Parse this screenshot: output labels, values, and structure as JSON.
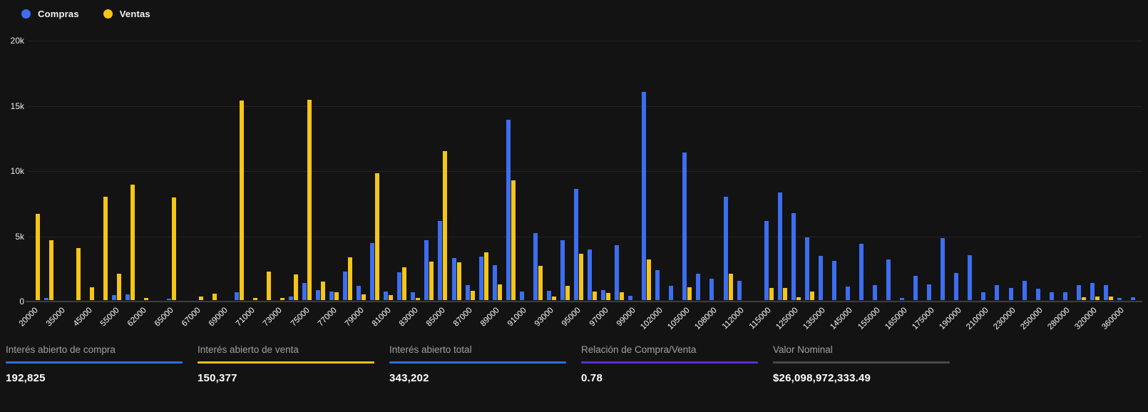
{
  "legend": [
    {
      "label": "Compras",
      "color": "#3d6ef1"
    },
    {
      "label": "Ventas",
      "color": "#f5c517"
    }
  ],
  "colors": {
    "background": "#131313",
    "compras_bar": "#3d6ef1",
    "ventas_bar": "#f5c517",
    "gridline": "#242424",
    "axis_line": "#3e3e3e"
  },
  "chart_data": {
    "type": "bar",
    "series_names": [
      "Compras",
      "Ventas"
    ],
    "xlabel": "",
    "ylabel": "",
    "ylim": [
      0,
      20000
    ],
    "y_ticks": [
      "0",
      "5k",
      "10k",
      "15k",
      "20k"
    ],
    "legend_position": "top-left",
    "grid": true,
    "note_label_interval": "only every second group is labeled on the x-axis",
    "groups": [
      {
        "label": "20000",
        "compras": 0,
        "ventas": 6600
      },
      {
        "label": "",
        "compras": 150,
        "ventas": 4600
      },
      {
        "label": "35000",
        "compras": 0,
        "ventas": 0
      },
      {
        "label": "",
        "compras": 0,
        "ventas": 4000
      },
      {
        "label": "45000",
        "compras": 0,
        "ventas": 1000
      },
      {
        "label": "",
        "compras": 0,
        "ventas": 7900
      },
      {
        "label": "55000",
        "compras": 400,
        "ventas": 2000
      },
      {
        "label": "",
        "compras": 450,
        "ventas": 8850
      },
      {
        "label": "62000",
        "compras": 0,
        "ventas": 150
      },
      {
        "label": "",
        "compras": 0,
        "ventas": 0
      },
      {
        "label": "65000",
        "compras": 100,
        "ventas": 7850
      },
      {
        "label": "",
        "compras": 0,
        "ventas": 0
      },
      {
        "label": "67000",
        "compras": 0,
        "ventas": 300
      },
      {
        "label": "",
        "compras": 0,
        "ventas": 500
      },
      {
        "label": "69000",
        "compras": 0,
        "ventas": 0
      },
      {
        "label": "",
        "compras": 600,
        "ventas": 15300
      },
      {
        "label": "71000",
        "compras": 0,
        "ventas": 150
      },
      {
        "label": "",
        "compras": 0,
        "ventas": 2200
      },
      {
        "label": "73000",
        "compras": 0,
        "ventas": 150
      },
      {
        "label": "",
        "compras": 270,
        "ventas": 1950
      },
      {
        "label": "75000",
        "compras": 1300,
        "ventas": 15350
      },
      {
        "label": "",
        "compras": 770,
        "ventas": 1400
      },
      {
        "label": "77000",
        "compras": 630,
        "ventas": 580
      },
      {
        "label": "",
        "compras": 2200,
        "ventas": 3300
      },
      {
        "label": "79000",
        "compras": 1100,
        "ventas": 450
      },
      {
        "label": "",
        "compras": 4350,
        "ventas": 9750
      },
      {
        "label": "81000",
        "compras": 630,
        "ventas": 360
      },
      {
        "label": "",
        "compras": 2150,
        "ventas": 2500
      },
      {
        "label": "83000",
        "compras": 590,
        "ventas": 150
      },
      {
        "label": "",
        "compras": 4600,
        "ventas": 2950
      },
      {
        "label": "85000",
        "compras": 6050,
        "ventas": 11400
      },
      {
        "label": "",
        "compras": 3250,
        "ventas": 2900
      },
      {
        "label": "87000",
        "compras": 1150,
        "ventas": 700
      },
      {
        "label": "",
        "compras": 3350,
        "ventas": 3650
      },
      {
        "label": "89000",
        "compras": 2700,
        "ventas": 1200
      },
      {
        "label": "",
        "compras": 13850,
        "ventas": 9200
      },
      {
        "label": "91000",
        "compras": 650,
        "ventas": 0
      },
      {
        "label": "",
        "compras": 5150,
        "ventas": 2650
      },
      {
        "label": "93000",
        "compras": 700,
        "ventas": 270
      },
      {
        "label": "",
        "compras": 4600,
        "ventas": 1100
      },
      {
        "label": "95000",
        "compras": 8550,
        "ventas": 3550
      },
      {
        "label": "",
        "compras": 3900,
        "ventas": 650
      },
      {
        "label": "97000",
        "compras": 770,
        "ventas": 550
      },
      {
        "label": "",
        "compras": 4200,
        "ventas": 600
      },
      {
        "label": "99000",
        "compras": 320,
        "ventas": 0
      },
      {
        "label": "",
        "compras": 15950,
        "ventas": 3100
      },
      {
        "label": "102000",
        "compras": 2300,
        "ventas": 0
      },
      {
        "label": "",
        "compras": 1100,
        "ventas": 0
      },
      {
        "label": "105000",
        "compras": 11300,
        "ventas": 1000
      },
      {
        "label": "",
        "compras": 2050,
        "ventas": 0
      },
      {
        "label": "108000",
        "compras": 1650,
        "ventas": 0
      },
      {
        "label": "",
        "compras": 7900,
        "ventas": 2050
      },
      {
        "label": "112000",
        "compras": 1500,
        "ventas": 0
      },
      {
        "label": "",
        "compras": 0,
        "ventas": 0
      },
      {
        "label": "115000",
        "compras": 6050,
        "ventas": 950
      },
      {
        "label": "",
        "compras": 8250,
        "ventas": 950
      },
      {
        "label": "125000",
        "compras": 6650,
        "ventas": 200
      },
      {
        "label": "",
        "compras": 4800,
        "ventas": 650
      },
      {
        "label": "135000",
        "compras": 3400,
        "ventas": 0
      },
      {
        "label": "",
        "compras": 3000,
        "ventas": 0
      },
      {
        "label": "145000",
        "compras": 1050,
        "ventas": 0
      },
      {
        "label": "",
        "compras": 4300,
        "ventas": 0
      },
      {
        "label": "155000",
        "compras": 1150,
        "ventas": 0
      },
      {
        "label": "",
        "compras": 3100,
        "ventas": 0
      },
      {
        "label": "165000",
        "compras": 150,
        "ventas": 0
      },
      {
        "label": "",
        "compras": 1850,
        "ventas": 0
      },
      {
        "label": "175000",
        "compras": 1200,
        "ventas": 0
      },
      {
        "label": "",
        "compras": 4750,
        "ventas": 0
      },
      {
        "label": "190000",
        "compras": 2100,
        "ventas": 0
      },
      {
        "label": "",
        "compras": 3450,
        "ventas": 0
      },
      {
        "label": "210000",
        "compras": 600,
        "ventas": 0
      },
      {
        "label": "",
        "compras": 1150,
        "ventas": 0
      },
      {
        "label": "230000",
        "compras": 950,
        "ventas": 0
      },
      {
        "label": "",
        "compras": 1500,
        "ventas": 0
      },
      {
        "label": "250000",
        "compras": 900,
        "ventas": 0
      },
      {
        "label": "",
        "compras": 600,
        "ventas": 0
      },
      {
        "label": "280000",
        "compras": 600,
        "ventas": 0
      },
      {
        "label": "",
        "compras": 1150,
        "ventas": 230
      },
      {
        "label": "320000",
        "compras": 1300,
        "ventas": 270
      },
      {
        "label": "",
        "compras": 1150,
        "ventas": 270
      },
      {
        "label": "360000",
        "compras": 150,
        "ventas": 0
      },
      {
        "label": "",
        "compras": 230,
        "ventas": 0
      }
    ]
  },
  "stats": [
    {
      "label": "Interés abierto de compra",
      "value": "192,825",
      "accent": "#2f6fdb"
    },
    {
      "label": "Interés abierto de venta",
      "value": "150,377",
      "accent": "#e8c116"
    },
    {
      "label": "Interés abierto total",
      "value": "343,202",
      "accent": "#2f6fdb"
    },
    {
      "label": "Relación de Compra/Venta",
      "value": "0.78",
      "accent": "#5c2dd5"
    },
    {
      "label": "Valor Nominal",
      "value": "$26,098,972,333.49",
      "accent": "#4a4a4a"
    }
  ]
}
